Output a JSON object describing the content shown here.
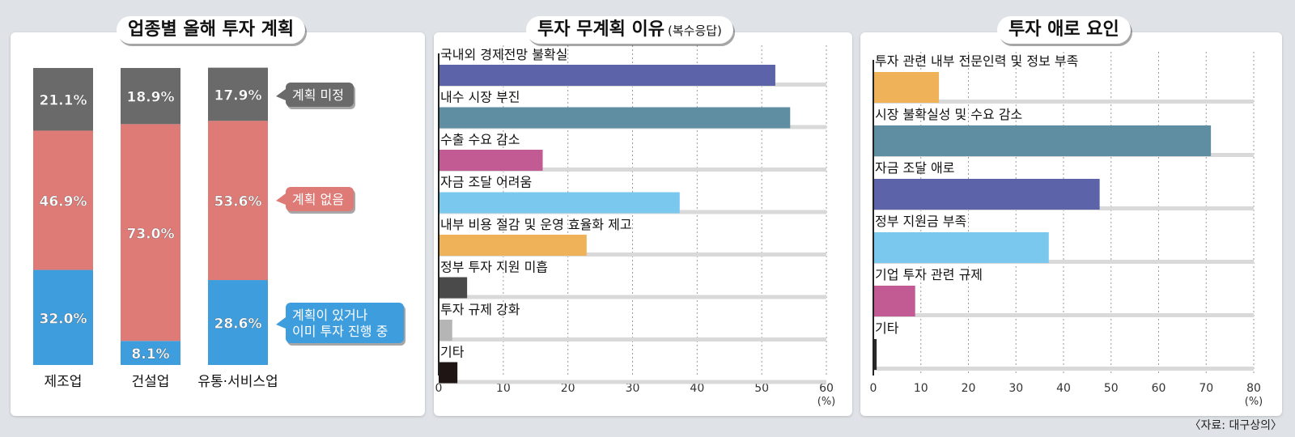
{
  "source": "〈자료: 대구상의〉",
  "colors": {
    "undecided": "#6a6a6a",
    "none": "#df7b76",
    "yes": "#3e9ddc"
  },
  "chart_data": [
    {
      "type": "bar",
      "stacked": true,
      "title": "업종별 올해 투자 계획",
      "categories": [
        "제조업",
        "건설업",
        "유통·서비스업"
      ],
      "series": [
        {
          "name": "계획이 있거나\n이미 투자 진행 중",
          "values": [
            32.0,
            8.1,
            28.6
          ],
          "labels": [
            "32.0%",
            "8.1%",
            "28.6%"
          ],
          "color": "#3e9ddc"
        },
        {
          "name": "계획 없음",
          "values": [
            46.9,
            73.0,
            53.6
          ],
          "labels": [
            "46.9%",
            "73.0%",
            "53.6%"
          ],
          "color": "#df7b76"
        },
        {
          "name": "계획 미정",
          "values": [
            21.1,
            18.9,
            17.9
          ],
          "labels": [
            "21.1%",
            "18.9%",
            "17.9%"
          ],
          "color": "#6a6a6a"
        }
      ],
      "legend": [
        "계획 미정",
        "계획 없음",
        "계획이 있거나",
        "이미 투자 진행 중"
      ],
      "ylim": [
        0,
        100
      ]
    },
    {
      "type": "bar",
      "orientation": "horizontal",
      "title": "투자 무계획 이유",
      "subtitle": "(복수응답)",
      "categories": [
        "국내외 경제전망 불확실",
        "내수 시장 부진",
        "수출 수요 감소",
        "자금 조달 어려움",
        "내부 비용 절감 및 운영 효율화 제고",
        "정부 투자 지원 미흡",
        "투자 규제 강화",
        "기타"
      ],
      "values": [
        52.1,
        54.4,
        16.1,
        37.3,
        22.9,
        4.4,
        2.1,
        2.9
      ],
      "colors": [
        "#5d63a9",
        "#5f8ea2",
        "#c25a94",
        "#7bc8ef",
        "#f0b259",
        "#4a4a4a",
        "#b5b5b5",
        "#1e1514"
      ],
      "xlim": [
        0,
        60
      ],
      "xticks": [
        "0",
        "10",
        "20",
        "30",
        "40",
        "50",
        "60"
      ],
      "xunit": "(%)"
    },
    {
      "type": "bar",
      "orientation": "horizontal",
      "title": "투자 애로 요인",
      "categories": [
        "투자 관련 내부 전문인력 및 정보 부족",
        "시장 불확실성 및 수요 감소",
        "자금 조달 애로",
        "정부 지원금 부족",
        "기업 투자 관련 규제",
        "기타"
      ],
      "values": [
        13.8,
        71.0,
        47.6,
        36.9,
        8.8,
        0.7
      ],
      "colors": [
        "#f0b259",
        "#5f8ea2",
        "#5d63a9",
        "#7bc8ef",
        "#c25a94",
        "#2a2a2a"
      ],
      "xlim": [
        0,
        80
      ],
      "xticks": [
        "0",
        "10",
        "20",
        "30",
        "40",
        "50",
        "60",
        "70",
        "80"
      ],
      "xunit": "(%)"
    }
  ]
}
